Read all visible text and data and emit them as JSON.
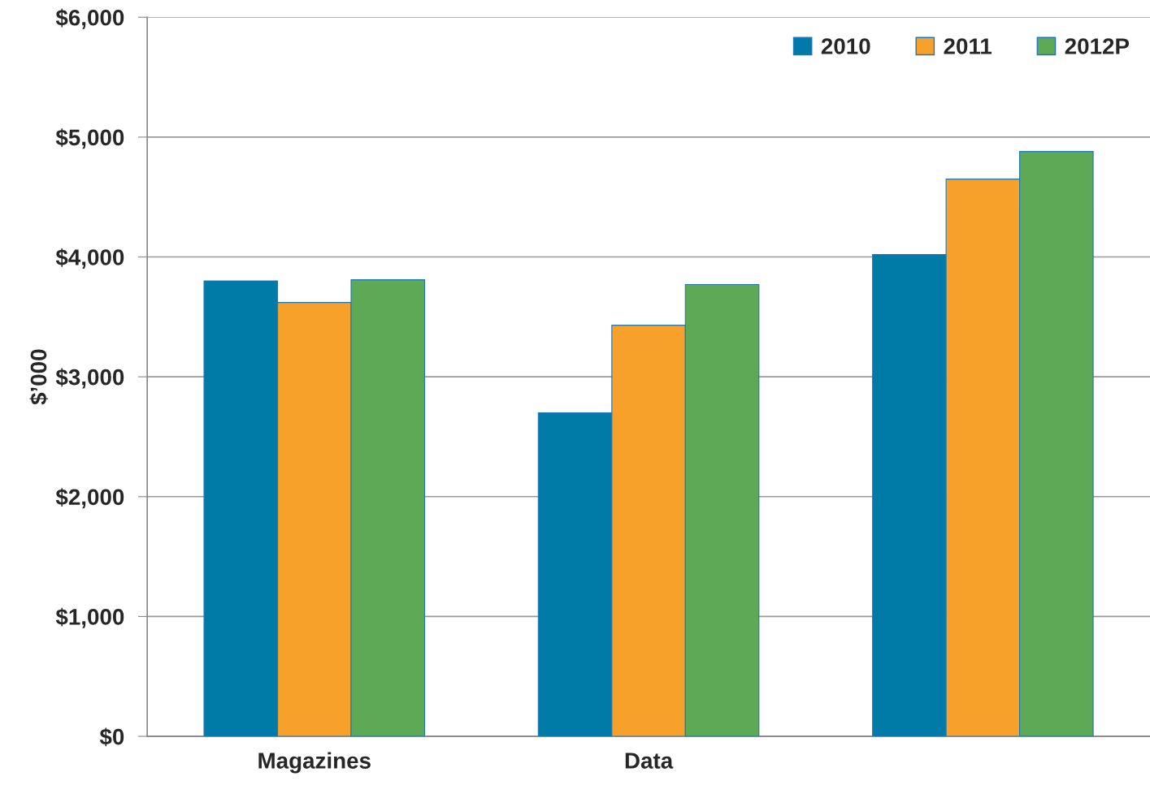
{
  "chart_data": {
    "type": "bar",
    "ylabel": "$’000",
    "categories": [
      "Magazines",
      "Data",
      null
    ],
    "series": [
      {
        "name": "2010",
        "color": "#007ba7",
        "values": [
          3800,
          2700,
          4020
        ]
      },
      {
        "name": "2011",
        "color": "#f7a12a",
        "values": [
          3620,
          3430,
          4650
        ]
      },
      {
        "name": "2012P",
        "color": "#5da955",
        "values": [
          3810,
          3770,
          4880
        ]
      }
    ],
    "ylim": [
      0,
      6000
    ],
    "yticks": [
      {
        "value": 0,
        "label": "$0"
      },
      {
        "value": 1000,
        "label": "$1,000"
      },
      {
        "value": 2000,
        "label": "$2,000"
      },
      {
        "value": 3000,
        "label": "$3,000"
      },
      {
        "value": 4000,
        "label": "$4,000"
      },
      {
        "value": 5000,
        "label": "$5,000"
      },
      {
        "value": 6000,
        "label": "$6,000"
      }
    ],
    "grid": "y",
    "legend": "top right"
  }
}
